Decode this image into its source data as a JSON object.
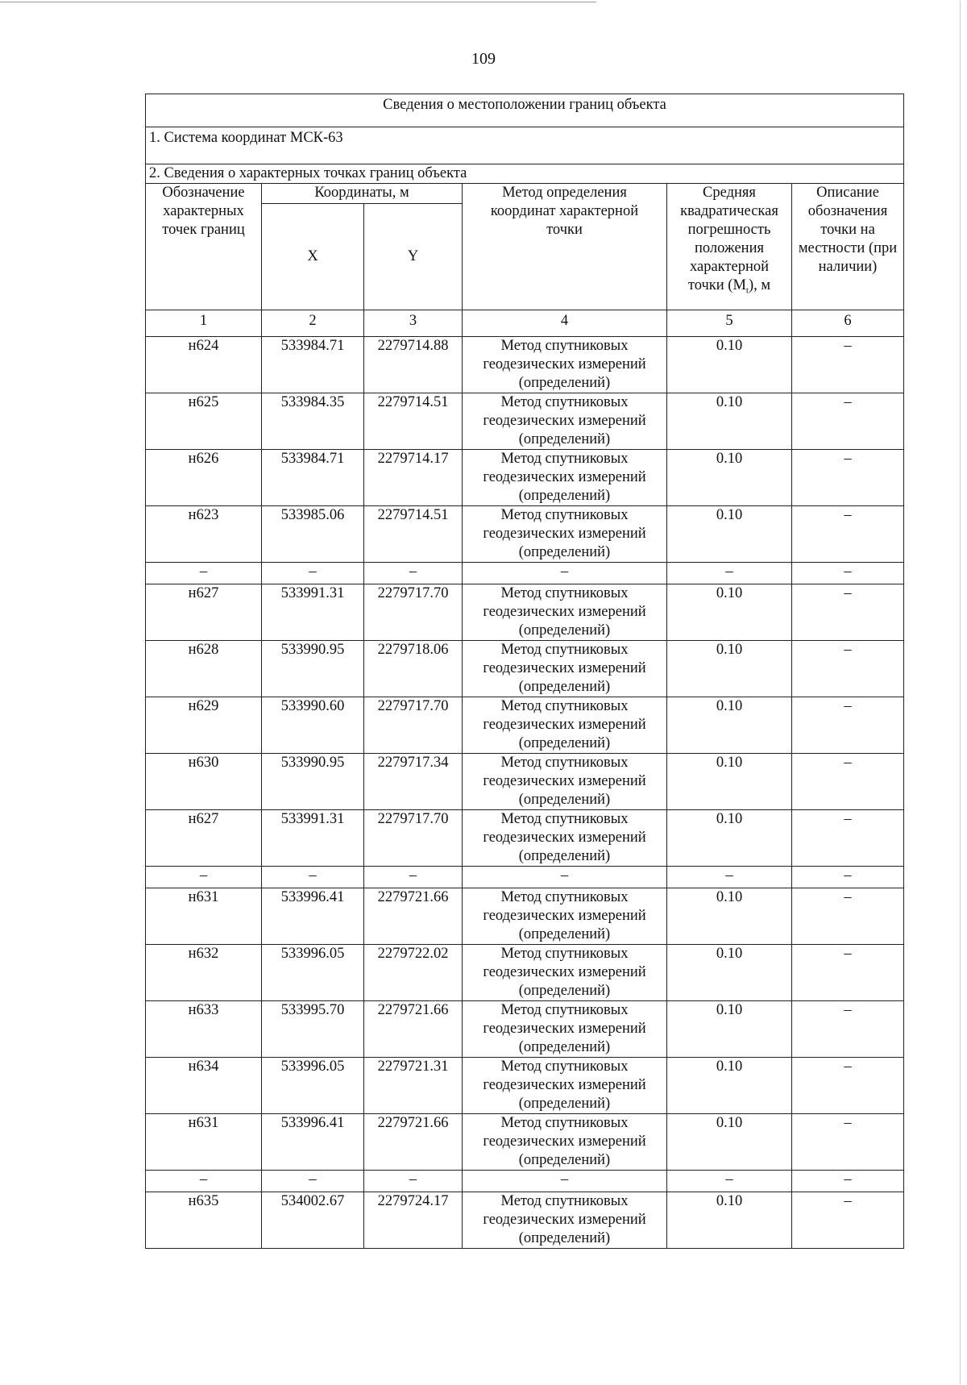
{
  "page_number": "109",
  "table": {
    "title": "Сведения о местоположении границ объекта",
    "coordinate_system": "1. Система координат МСК-63",
    "section": "2. Сведения о характерных точках границ объекта",
    "headers": {
      "designation": "Обозначение характерных точек границ",
      "coordinates": "Координаты, м",
      "x": "X",
      "y": "Y",
      "method": "Метод определения координат характерной точки",
      "error": "Средняя квадратическая погрешность положения характерной точки (Mt), м",
      "description": "Описание обозначения точки на местности (при наличии)"
    },
    "column_numbers": [
      "1",
      "2",
      "3",
      "4",
      "5",
      "6"
    ],
    "rows": [
      {
        "point": "н624",
        "x": "533984.71",
        "y": "2279714.88",
        "method": "Метод спутниковых геодезических измерений (определений)",
        "error": "0.10",
        "desc": "–"
      },
      {
        "point": "н625",
        "x": "533984.35",
        "y": "2279714.51",
        "method": "Метод спутниковых геодезических измерений (определений)",
        "error": "0.10",
        "desc": "–"
      },
      {
        "point": "н626",
        "x": "533984.71",
        "y": "2279714.17",
        "method": "Метод спутниковых геодезических измерений (определений)",
        "error": "0.10",
        "desc": "–"
      },
      {
        "point": "н623",
        "x": "533985.06",
        "y": "2279714.51",
        "method": "Метод спутниковых геодезических измерений (определений)",
        "error": "0.10",
        "desc": "–"
      },
      {
        "separator": true,
        "point": "–",
        "x": "–",
        "y": "–",
        "method": "–",
        "error": "–",
        "desc": "–"
      },
      {
        "point": "н627",
        "x": "533991.31",
        "y": "2279717.70",
        "method": "Метод спутниковых геодезических измерений (определений)",
        "error": "0.10",
        "desc": "–"
      },
      {
        "point": "н628",
        "x": "533990.95",
        "y": "2279718.06",
        "method": "Метод спутниковых геодезических измерений (определений)",
        "error": "0.10",
        "desc": "–"
      },
      {
        "point": "н629",
        "x": "533990.60",
        "y": "2279717.70",
        "method": "Метод спутниковых геодезических измерений (определений)",
        "error": "0.10",
        "desc": "–"
      },
      {
        "point": "н630",
        "x": "533990.95",
        "y": "2279717.34",
        "method": "Метод спутниковых геодезических измерений (определений)",
        "error": "0.10",
        "desc": "–"
      },
      {
        "point": "н627",
        "x": "533991.31",
        "y": "2279717.70",
        "method": "Метод спутниковых геодезических измерений (определений)",
        "error": "0.10",
        "desc": "–"
      },
      {
        "separator": true,
        "point": "–",
        "x": "–",
        "y": "–",
        "method": "–",
        "error": "–",
        "desc": "–"
      },
      {
        "point": "н631",
        "x": "533996.41",
        "y": "2279721.66",
        "method": "Метод спутниковых геодезических измерений (определений)",
        "error": "0.10",
        "desc": "–"
      },
      {
        "point": "н632",
        "x": "533996.05",
        "y": "2279722.02",
        "method": "Метод спутниковых геодезических измерений (определений)",
        "error": "0.10",
        "desc": "–"
      },
      {
        "point": "н633",
        "x": "533995.70",
        "y": "2279721.66",
        "method": "Метод спутниковых геодезических измерений (определений)",
        "error": "0.10",
        "desc": "–"
      },
      {
        "point": "н634",
        "x": "533996.05",
        "y": "2279721.31",
        "method": "Метод спутниковых геодезических измерений (определений)",
        "error": "0.10",
        "desc": "–"
      },
      {
        "point": "н631",
        "x": "533996.41",
        "y": "2279721.66",
        "method": "Метод спутниковых геодезических измерений (определений)",
        "error": "0.10",
        "desc": "–"
      },
      {
        "separator": true,
        "point": "–",
        "x": "–",
        "y": "–",
        "method": "–",
        "error": "–",
        "desc": "–"
      },
      {
        "point": "н635",
        "x": "534002.67",
        "y": "2279724.17",
        "method": "Метод спутниковых геодезических измерений (определений)",
        "error": "0.10",
        "desc": "–"
      }
    ]
  }
}
